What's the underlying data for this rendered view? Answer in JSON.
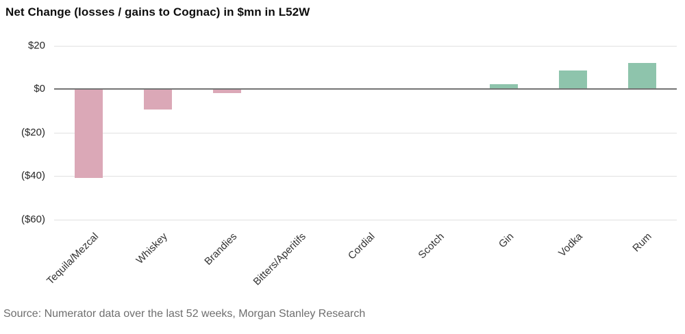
{
  "source_note": "Source: Numerator data over the last 52 weeks, Morgan Stanley Research",
  "chart_data": {
    "type": "bar",
    "title": "Net Change (losses / gains to Cognac) in $mn in L52W",
    "categories": [
      "Tequila/Mezcal",
      "Whiskey",
      "Brandies",
      "Bitters/Aperitifs",
      "Cordial",
      "Scotch",
      "Gin",
      "Vodka",
      "Rum"
    ],
    "values": [
      -41,
      -9.5,
      -2,
      -0.2,
      0.4,
      0.4,
      2.1,
      8.5,
      12.1
    ],
    "unit": "$mn",
    "xlabel": "",
    "ylabel": "",
    "y_ticks": [
      {
        "value": 20,
        "label": "$20"
      },
      {
        "value": 0,
        "label": "$0"
      },
      {
        "value": -20,
        "label": "($20)"
      },
      {
        "value": -40,
        "label": "($40)"
      },
      {
        "value": -60,
        "label": "($60)"
      }
    ],
    "ylim": [
      -70,
      25
    ],
    "grid": "horizontal",
    "legend": "none",
    "colors": {
      "positive": "#8ec4ac",
      "negative": "#dba8b7",
      "zero_axis": "#737373",
      "gridline": "#e0e0e0"
    }
  }
}
